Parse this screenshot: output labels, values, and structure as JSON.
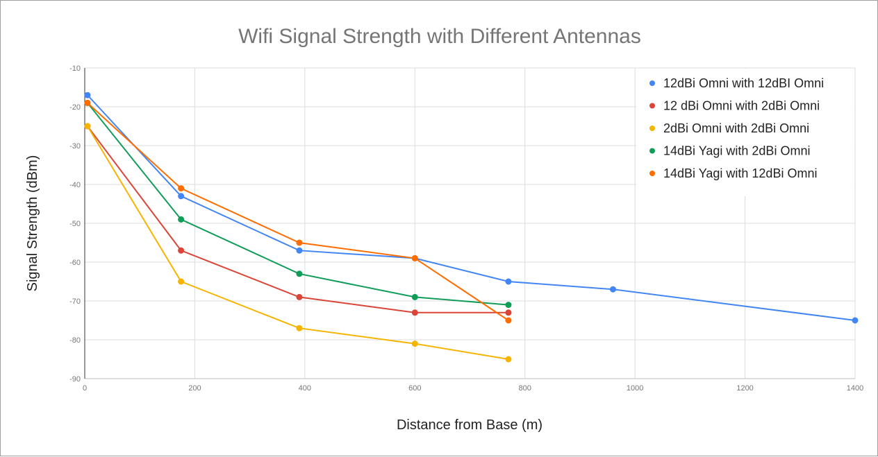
{
  "chart_data": {
    "type": "line",
    "title": "Wifi Signal Strength with Different Antennas",
    "xlabel": "Distance from Base (m)",
    "ylabel": "Signal Strength (dBm)",
    "xlim": [
      0,
      1400
    ],
    "ylim": [
      -90,
      -10
    ],
    "xticks": [
      0,
      200,
      400,
      600,
      800,
      1000,
      1200,
      1400
    ],
    "yticks": [
      -10,
      -20,
      -30,
      -40,
      -50,
      -60,
      -70,
      -80,
      -90
    ],
    "grid": true,
    "legend_position": "top-right",
    "series": [
      {
        "name": "12dBi Omni with 12dBI Omni",
        "color": "#4285F4",
        "x": [
          5,
          175,
          390,
          600,
          770,
          960,
          1400
        ],
        "y": [
          -17,
          -43,
          -57,
          -59,
          -65,
          -67,
          -75
        ]
      },
      {
        "name": "12 dBi Omni with 2dBi Omni",
        "color": "#DB4437",
        "x": [
          5,
          175,
          390,
          600,
          770
        ],
        "y": [
          -25,
          -57,
          -69,
          -73,
          -73
        ]
      },
      {
        "name": "2dBi Omni with 2dBi Omni",
        "color": "#F4B400",
        "x": [
          5,
          175,
          390,
          600,
          770
        ],
        "y": [
          -25,
          -65,
          -77,
          -81,
          -85
        ]
      },
      {
        "name": "14dBi Yagi with 2dBi Omni",
        "color": "#0F9D58",
        "x": [
          5,
          175,
          390,
          600,
          770
        ],
        "y": [
          -19,
          -49,
          -63,
          -69,
          -71
        ]
      },
      {
        "name": "14dBi Yagi with 12dBi Omni",
        "color": "#FF6D01",
        "x": [
          5,
          175,
          390,
          600,
          770
        ],
        "y": [
          -19,
          -41,
          -55,
          -59,
          -75
        ]
      }
    ]
  }
}
